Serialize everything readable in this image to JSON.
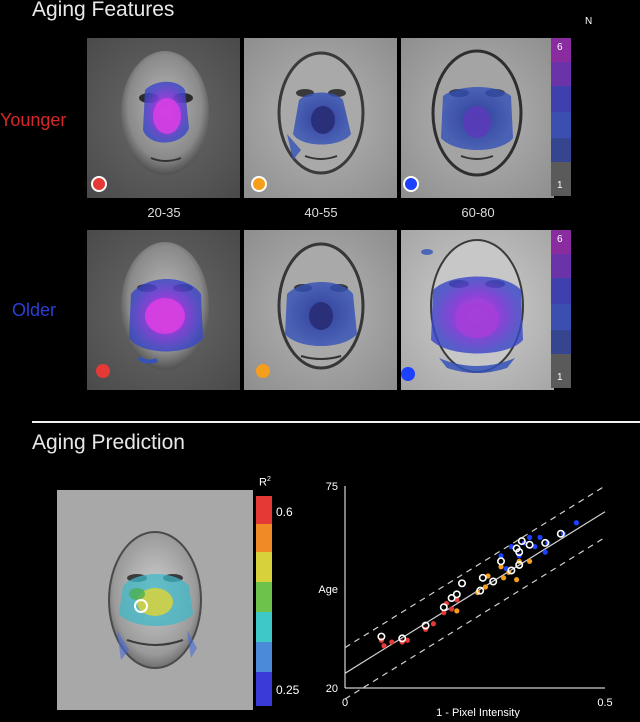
{
  "aging_features": {
    "title": "Aging Features",
    "row_labels": [
      {
        "label": "Younger",
        "color": "#d62828"
      },
      {
        "label": "Older",
        "color": "#2b3fd6"
      }
    ],
    "column_labels": [
      "20-35",
      "40-55",
      "60-80"
    ],
    "group_dots": [
      {
        "color": "#e53935",
        "name": "20-35"
      },
      {
        "color": "#f59e1b",
        "name": "40-55"
      },
      {
        "color": "#1e40ff",
        "name": "60-80"
      }
    ],
    "legend": {
      "title": "N",
      "top": "6",
      "bottom": "1"
    }
  },
  "aging_prediction": {
    "title": "Aging Prediction",
    "r2_legend": {
      "title": "R",
      "superscript": "2",
      "top": "0.6",
      "bottom": "0.25"
    }
  },
  "chart_data": {
    "type": "scatter",
    "xlabel": "1 - Pixel Intensity",
    "ylabel": "Age",
    "xlim": [
      0,
      0.5
    ],
    "ylim": [
      20,
      75
    ],
    "x_ticks": [
      "0",
      "0.5"
    ],
    "y_ticks": [
      "20",
      "75"
    ],
    "fit_line": {
      "x": [
        0,
        0.5
      ],
      "y": [
        24,
        68
      ]
    },
    "band_lines": [
      {
        "x": [
          0,
          0.5
        ],
        "y": [
          31,
          75
        ]
      },
      {
        "x": [
          0,
          0.5
        ],
        "y": [
          17,
          61
        ]
      }
    ],
    "series": [
      {
        "color": "#e53935",
        "points": [
          [
            0.07,
            33.0
          ],
          [
            0.075,
            31.5
          ],
          [
            0.09,
            32.5
          ],
          [
            0.11,
            32.5
          ],
          [
            0.12,
            33.0
          ],
          [
            0.155,
            36.0
          ],
          [
            0.17,
            37.5
          ],
          [
            0.19,
            40.5
          ],
          [
            0.195,
            43.0
          ],
          [
            0.205,
            41.5
          ],
          [
            0.215,
            44.0
          ]
        ]
      },
      {
        "color": "#f59e1b",
        "points": [
          [
            0.215,
            41.0
          ],
          [
            0.255,
            46.0
          ],
          [
            0.27,
            47.5
          ],
          [
            0.275,
            50.5
          ],
          [
            0.3,
            53.0
          ],
          [
            0.305,
            50.0
          ],
          [
            0.315,
            51.5
          ],
          [
            0.33,
            49.5
          ],
          [
            0.335,
            54.5
          ],
          [
            0.355,
            54.5
          ]
        ]
      },
      {
        "color": "#1e40ff",
        "points": [
          [
            0.3,
            56.0
          ],
          [
            0.31,
            52.5
          ],
          [
            0.32,
            58.5
          ],
          [
            0.335,
            56.0
          ],
          [
            0.345,
            59.5
          ],
          [
            0.355,
            61.0
          ],
          [
            0.365,
            58.5
          ],
          [
            0.375,
            61.0
          ],
          [
            0.385,
            57.0
          ],
          [
            0.39,
            59.5
          ],
          [
            0.42,
            62.0
          ],
          [
            0.445,
            65.0
          ]
        ]
      }
    ],
    "highlighted": [
      [
        0.07,
        34.0
      ],
      [
        0.11,
        33.5
      ],
      [
        0.155,
        37.0
      ],
      [
        0.19,
        42.0
      ],
      [
        0.205,
        44.5
      ],
      [
        0.215,
        45.5
      ],
      [
        0.26,
        46.5
      ],
      [
        0.265,
        50.0
      ],
      [
        0.285,
        49.0
      ],
      [
        0.3,
        54.5
      ],
      [
        0.32,
        52.0
      ],
      [
        0.335,
        57.0
      ],
      [
        0.335,
        53.5
      ],
      [
        0.34,
        60.0
      ],
      [
        0.355,
        59.0
      ],
      [
        0.385,
        59.5
      ],
      [
        0.225,
        48.5
      ],
      [
        0.33,
        58.0
      ],
      [
        0.415,
        62.0
      ]
    ]
  }
}
